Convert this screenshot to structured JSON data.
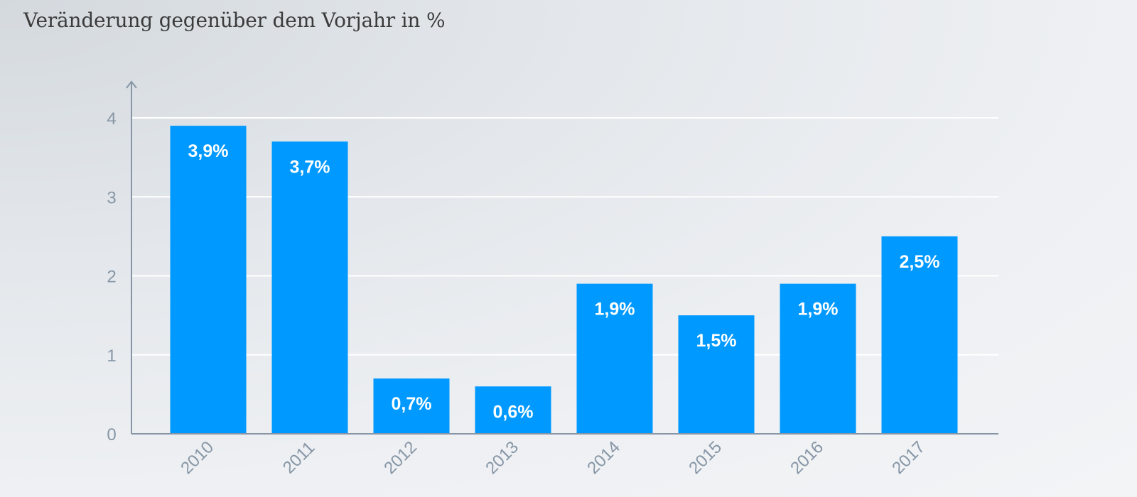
{
  "chart_data": {
    "type": "bar",
    "title": "Veränderung gegenüber dem Vorjahr in %",
    "categories": [
      "2010",
      "2011",
      "2012",
      "2013",
      "2014",
      "2015",
      "2016",
      "2017"
    ],
    "values": [
      3.9,
      3.7,
      0.7,
      0.6,
      1.9,
      1.5,
      1.9,
      2.5
    ],
    "data_labels": [
      "3,9%",
      "3,7%",
      "0,7%",
      "0,6%",
      "1,9%",
      "1,5%",
      "1,9%",
      "2,5%"
    ],
    "y_ticks": [
      "0",
      "1",
      "2",
      "3",
      "4"
    ],
    "ylim": [
      0,
      4
    ],
    "xlabel": "",
    "ylabel": "",
    "grid": true,
    "bar_color": "#0099ff",
    "grid_color": "#ffffff",
    "axis_color": "#8796a6"
  }
}
